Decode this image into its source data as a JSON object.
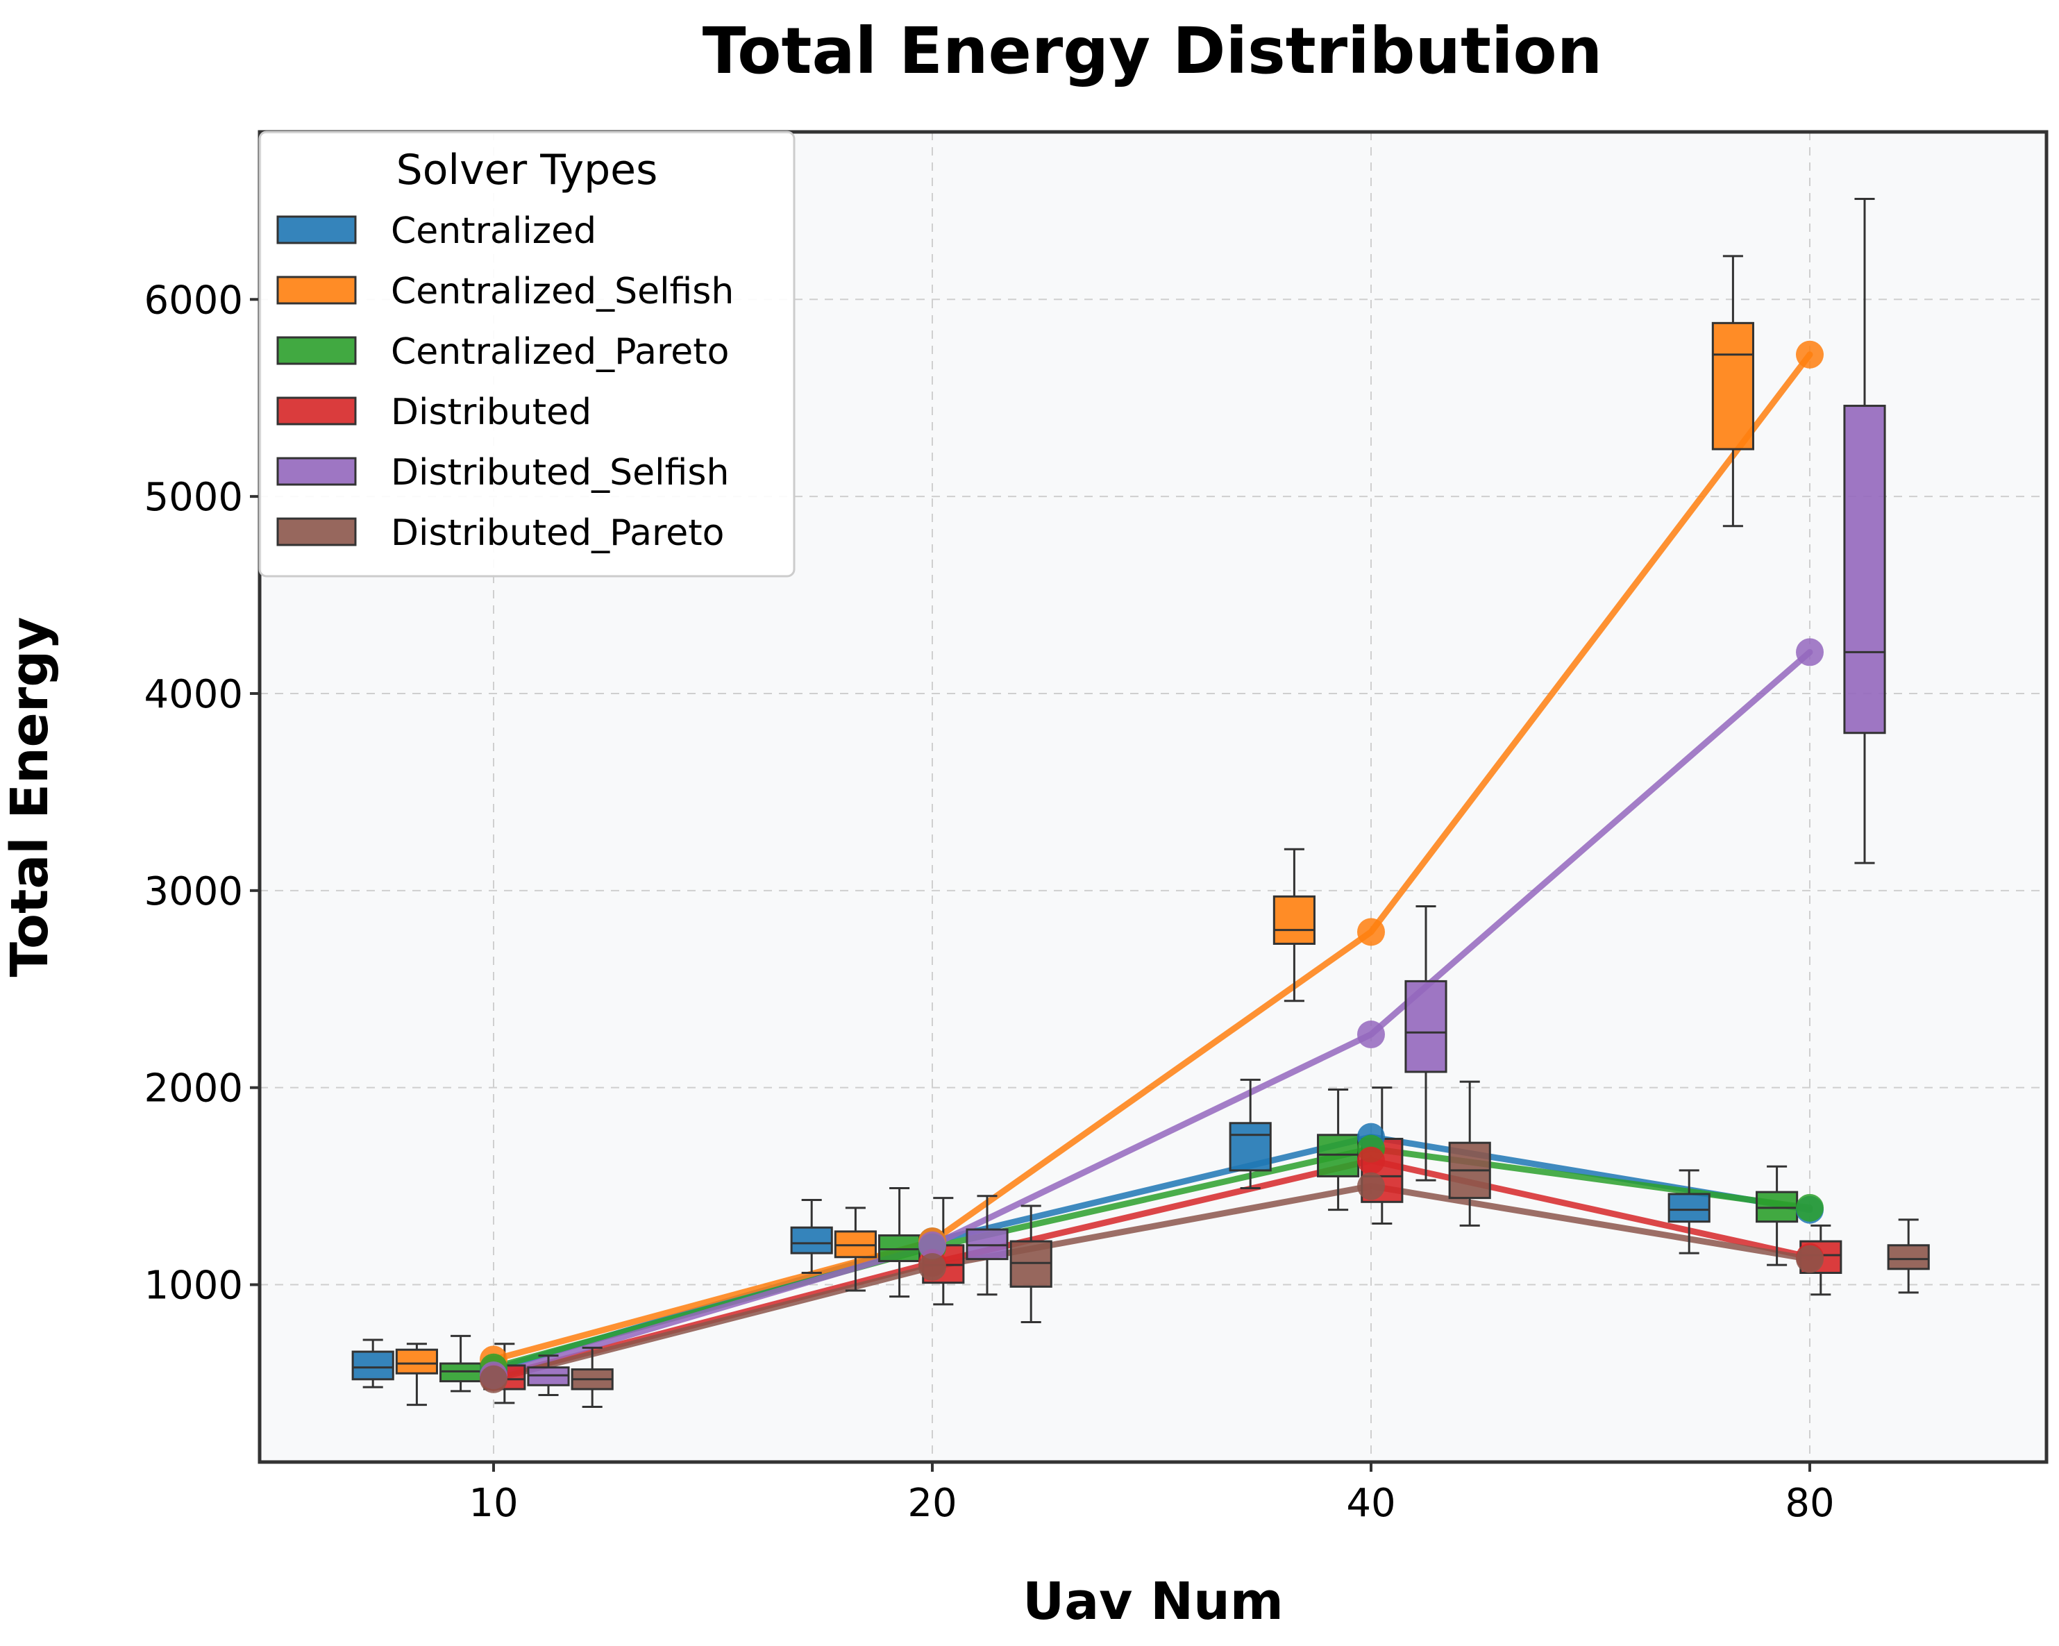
{
  "chart_data": {
    "type": "box",
    "title": "Total Energy Distribution",
    "xlabel": "Uav Num",
    "ylabel": "Total Energy",
    "categories": [
      "10",
      "20",
      "40",
      "80"
    ],
    "ylim": [
      100,
      6850
    ],
    "yticks": [
      1000,
      2000,
      3000,
      4000,
      5000,
      6000
    ],
    "grid": true,
    "legend": {
      "title": "Solver Types",
      "position": "top-left"
    },
    "series": [
      {
        "name": "Centralized",
        "color": "#1f77b4",
        "boxes": [
          {
            "whislo": 480,
            "q1": 520,
            "med": 580,
            "q3": 660,
            "whishi": 720
          },
          {
            "whislo": 1060,
            "q1": 1160,
            "med": 1210,
            "q3": 1290,
            "whishi": 1430
          },
          {
            "whislo": 1490,
            "q1": 1580,
            "med": 1760,
            "q3": 1820,
            "whishi": 2040
          },
          {
            "whislo": 1160,
            "q1": 1320,
            "med": 1380,
            "q3": 1460,
            "whishi": 1580
          }
        ],
        "mean_line": [
          570,
          1220,
          1750,
          1380
        ]
      },
      {
        "name": "Centralized_Selfish",
        "color": "#ff7f0e",
        "boxes": [
          {
            "whislo": 390,
            "q1": 550,
            "med": 600,
            "q3": 670,
            "whishi": 700
          },
          {
            "whislo": 970,
            "q1": 1140,
            "med": 1200,
            "q3": 1270,
            "whishi": 1390
          },
          {
            "whislo": 2440,
            "q1": 2730,
            "med": 2800,
            "q3": 2970,
            "whishi": 3210
          },
          {
            "whislo": 4850,
            "q1": 5240,
            "med": 5720,
            "q3": 5880,
            "whishi": 6220
          }
        ],
        "mean_line": [
          620,
          1220,
          2790,
          5720
        ]
      },
      {
        "name": "Centralized_Pareto",
        "color": "#2ca02c",
        "boxes": [
          {
            "whislo": 460,
            "q1": 510,
            "med": 560,
            "q3": 600,
            "whishi": 740
          },
          {
            "whislo": 940,
            "q1": 1120,
            "med": 1180,
            "q3": 1250,
            "whishi": 1490
          },
          {
            "whislo": 1380,
            "q1": 1550,
            "med": 1660,
            "q3": 1760,
            "whishi": 1990
          },
          {
            "whislo": 1100,
            "q1": 1320,
            "med": 1390,
            "q3": 1470,
            "whishi": 1600
          }
        ],
        "mean_line": [
          580,
          1190,
          1690,
          1390
        ]
      },
      {
        "name": "Distributed",
        "color": "#d62728",
        "boxes": [
          {
            "whislo": 400,
            "q1": 470,
            "med": 520,
            "q3": 590,
            "whishi": 700
          },
          {
            "whislo": 900,
            "q1": 1010,
            "med": 1100,
            "q3": 1200,
            "whishi": 1440
          },
          {
            "whislo": 1310,
            "q1": 1420,
            "med": 1550,
            "q3": 1740,
            "whishi": 2000
          },
          {
            "whislo": 950,
            "q1": 1060,
            "med": 1150,
            "q3": 1220,
            "whishi": 1300
          }
        ],
        "mean_line": [
          530,
          1110,
          1630,
          1140
        ]
      },
      {
        "name": "Distributed_Selfish",
        "color": "#9467bd",
        "boxes": [
          {
            "whislo": 440,
            "q1": 490,
            "med": 540,
            "q3": 580,
            "whishi": 640
          },
          {
            "whislo": 950,
            "q1": 1130,
            "med": 1200,
            "q3": 1280,
            "whishi": 1450
          },
          {
            "whislo": 1530,
            "q1": 2080,
            "med": 2280,
            "q3": 2540,
            "whishi": 2920
          },
          {
            "whislo": 3140,
            "q1": 3800,
            "med": 4210,
            "q3": 5460,
            "whishi": 6510
          }
        ],
        "mean_line": [
          540,
          1200,
          2270,
          4210
        ]
      },
      {
        "name": "Distributed_Pareto",
        "color": "#8c564b",
        "boxes": [
          {
            "whislo": 380,
            "q1": 470,
            "med": 520,
            "q3": 570,
            "whishi": 680
          },
          {
            "whislo": 810,
            "q1": 990,
            "med": 1110,
            "q3": 1220,
            "whishi": 1400
          },
          {
            "whislo": 1300,
            "q1": 1440,
            "med": 1580,
            "q3": 1720,
            "whishi": 2030
          },
          {
            "whislo": 960,
            "q1": 1080,
            "med": 1130,
            "q3": 1200,
            "whishi": 1330
          }
        ],
        "mean_line": [
          520,
          1090,
          1500,
          1130
        ]
      }
    ]
  }
}
